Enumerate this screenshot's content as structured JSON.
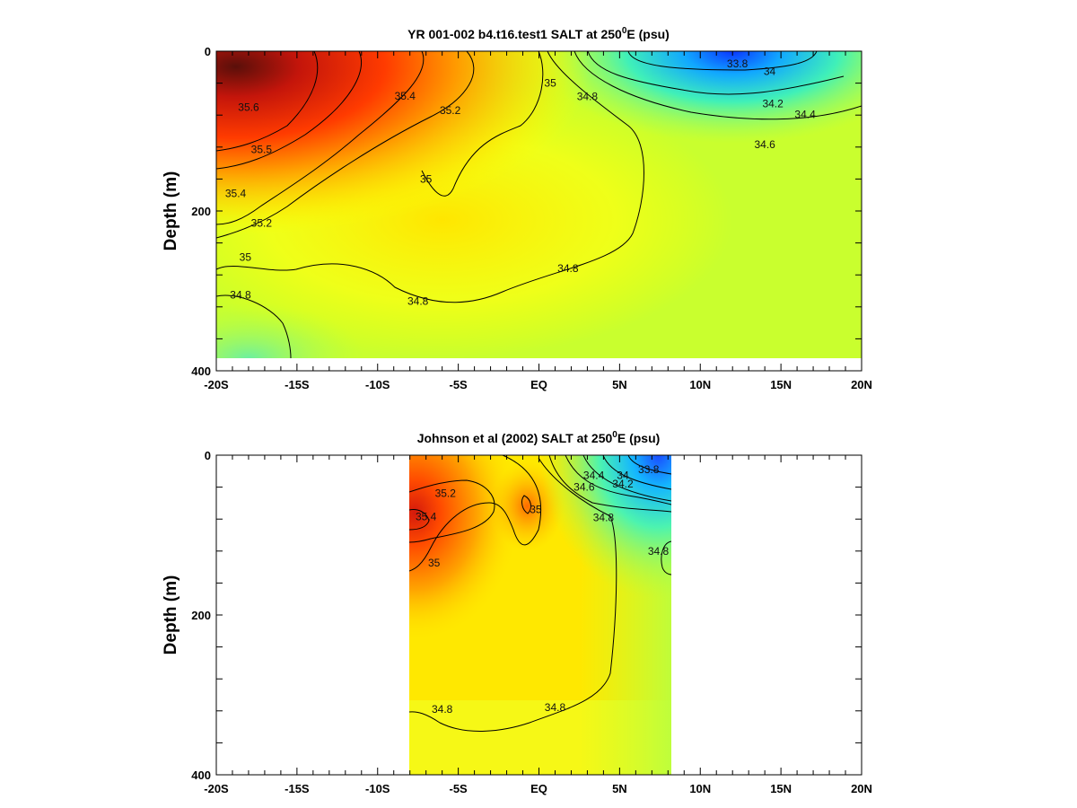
{
  "chart_data": [
    {
      "type": "heatmap",
      "title": "YR 001-002 b4.t16.test1 SALT at 250",
      "title_sup": "0",
      "title_tail": "E (psu)",
      "ylabel": "Depth (m)",
      "xlabel": "",
      "x_ticks": [
        "-20S",
        "-15S",
        "-10S",
        "-5S",
        "EQ",
        "5N",
        "10N",
        "15N",
        "20N"
      ],
      "y_ticks": [
        "0",
        "200",
        "400"
      ],
      "xlim": [
        -20,
        20
      ],
      "ylim": [
        0,
        400
      ],
      "data_extent": {
        "x": [
          -20,
          20
        ],
        "depth": [
          0,
          380
        ]
      },
      "contour_labels": [
        {
          "text": "33.8",
          "x": 12.3,
          "depth": 16
        },
        {
          "text": "34",
          "x": 14.3,
          "depth": 25
        },
        {
          "text": "34.2",
          "x": 14.5,
          "depth": 66
        },
        {
          "text": "34.4",
          "x": 16.5,
          "depth": 79
        },
        {
          "text": "34.6",
          "x": 14.0,
          "depth": 117
        },
        {
          "text": "34.8",
          "x": 3.0,
          "depth": 57
        },
        {
          "text": "35",
          "x": 0.7,
          "depth": 40
        },
        {
          "text": "35.2",
          "x": -5.5,
          "depth": 74
        },
        {
          "text": "35.4",
          "x": -8.3,
          "depth": 56
        },
        {
          "text": "35.6",
          "x": -18.0,
          "depth": 70
        },
        {
          "text": "35.5",
          "x": -17.2,
          "depth": 123
        },
        {
          "text": "35",
          "x": -7.0,
          "depth": 160
        },
        {
          "text": "35.4",
          "x": -18.8,
          "depth": 178
        },
        {
          "text": "35.2",
          "x": -17.2,
          "depth": 215
        },
        {
          "text": "35",
          "x": -18.2,
          "depth": 258
        },
        {
          "text": "34.8",
          "x": 1.8,
          "depth": 272
        },
        {
          "text": "34.8",
          "x": -18.5,
          "depth": 305
        },
        {
          "text": "34.8",
          "x": -7.5,
          "depth": 313
        }
      ]
    },
    {
      "type": "heatmap",
      "title": "Johnson et al (2002) SALT at 250",
      "title_sup": "0",
      "title_tail": "E (psu)",
      "ylabel": "Depth (m)",
      "xlabel": "",
      "x_ticks": [
        "-20S",
        "-15S",
        "-10S",
        "-5S",
        "EQ",
        "5N",
        "10N",
        "15N",
        "20N"
      ],
      "y_ticks": [
        "0",
        "200",
        "400"
      ],
      "xlim": [
        -20,
        20
      ],
      "ylim": [
        0,
        400
      ],
      "data_extent": {
        "x": [
          -8,
          8
        ],
        "depth": [
          0,
          400
        ]
      },
      "contour_labels": [
        {
          "text": "33.8",
          "x": 6.8,
          "depth": 18
        },
        {
          "text": "34",
          "x": 5.2,
          "depth": 25
        },
        {
          "text": "34.2",
          "x": 5.2,
          "depth": 36
        },
        {
          "text": "34.4",
          "x": 3.4,
          "depth": 25
        },
        {
          "text": "34.6",
          "x": 2.8,
          "depth": 40
        },
        {
          "text": "34.8",
          "x": 4.0,
          "depth": 78
        },
        {
          "text": "34.8",
          "x": 7.4,
          "depth": 120
        },
        {
          "text": "35",
          "x": -0.2,
          "depth": 68
        },
        {
          "text": "35.2",
          "x": -5.8,
          "depth": 48
        },
        {
          "text": "35.4",
          "x": -7.0,
          "depth": 77
        },
        {
          "text": "35",
          "x": -6.5,
          "depth": 135
        },
        {
          "text": "34.8",
          "x": -6.0,
          "depth": 318
        },
        {
          "text": "34.8",
          "x": 1.0,
          "depth": 316
        }
      ]
    }
  ]
}
